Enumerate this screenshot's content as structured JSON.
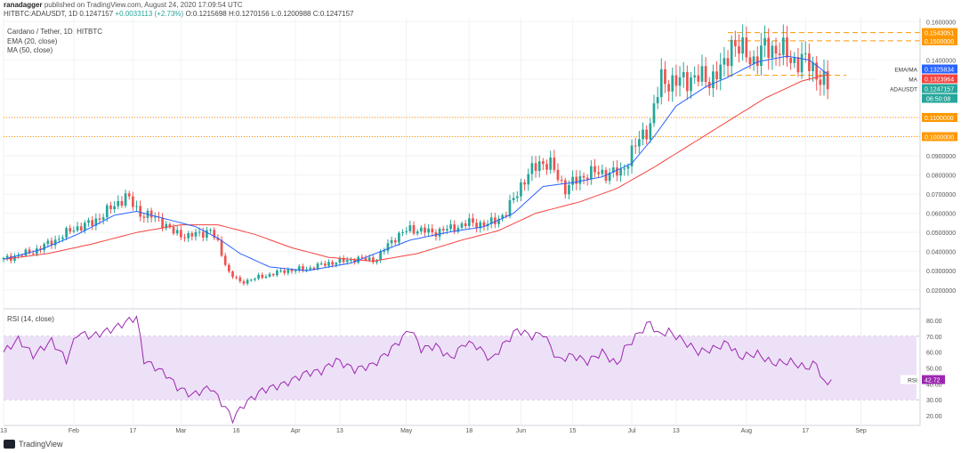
{
  "header": {
    "publisher": "ranadagger",
    "published_text": "published on TradingView.com, August 24, 2020 17:09:54 UTC",
    "quote_line": "HITBTC:ADAUSDT, 1D 0.1247157",
    "quote_change": "+0.0033113 (+2.73%)",
    "quote_ohlc": "O:0.1215698 H:0.1270156 L:0.1200988 C:0.1247157"
  },
  "legend": {
    "title": "Cardano / Tether, 1D, HITBTC",
    "ema": "EMA (20, close)",
    "ma": "MA (50, close)",
    "rsi": "RSI (14, close)"
  },
  "footer": {
    "brand": "TradingView"
  },
  "colors": {
    "up": "#26a69a",
    "down": "#ef5350",
    "ema": "#2962ff",
    "ma": "#f4433e",
    "rsi": "#9c27b0",
    "level": "#ff9800",
    "rsi_band": "#ede1f7"
  },
  "chart_data": {
    "type": "candlestick",
    "title": "Cardano / Tether, 1D, HITBTC",
    "y_ticks": [
      "0.1600000",
      "0.1400000",
      "0.1300000",
      "0.1100000",
      "0.1000000",
      "0.0900000",
      "0.0800000",
      "0.0700000",
      "0.0600000",
      "0.0500000",
      "0.0400000",
      "0.0300000",
      "0.0200000"
    ],
    "ylim": [
      0.012,
      0.162
    ],
    "x_ticks": [
      {
        "label": "13",
        "day": 0
      },
      {
        "label": "Feb",
        "day": 19
      },
      {
        "label": "17",
        "day": 35
      },
      {
        "label": "Mar",
        "day": 48
      },
      {
        "label": "16",
        "day": 63
      },
      {
        "label": "Apr",
        "day": 79
      },
      {
        "label": "13",
        "day": 91
      },
      {
        "label": "May",
        "day": 109
      },
      {
        "label": "18",
        "day": 126
      },
      {
        "label": "Jun",
        "day": 140
      },
      {
        "label": "15",
        "day": 154
      },
      {
        "label": "Jul",
        "day": 170
      },
      {
        "label": "13",
        "day": 182
      },
      {
        "label": "Aug",
        "day": 201
      },
      {
        "label": "17",
        "day": 217
      },
      {
        "label": "Sep",
        "day": 232
      }
    ],
    "x_range_days": [
      0,
      248
    ],
    "horizontal_levels": [
      {
        "value": 0.1543051,
        "label": "0.1543051",
        "style": "dashed"
      },
      {
        "value": 0.15,
        "label": "0.1500000",
        "style": "dashed"
      },
      {
        "value": 0.11,
        "label": "0.1100000",
        "style": "dotted"
      },
      {
        "value": 0.1,
        "label": "0.1000000",
        "style": "dotted"
      }
    ],
    "support_line": {
      "value": 0.132,
      "from_day": 196,
      "to_day": 228
    },
    "price_labels": [
      {
        "name": "EMA/MA",
        "value": 0.1325834,
        "text": "0.1325834",
        "color": "#2962ff"
      },
      {
        "name": "MA",
        "value": 0.1323964,
        "text": "0.1323964",
        "color": "#f4433e"
      },
      {
        "name": "ADAUSDT",
        "value": 0.1247157,
        "text": "0.1247157",
        "color": "#26a69a"
      }
    ],
    "countdown": "06:50:08",
    "series_keypoints": [
      [
        0,
        0.036
      ],
      [
        8,
        0.04
      ],
      [
        14,
        0.046
      ],
      [
        19,
        0.052
      ],
      [
        24,
        0.055
      ],
      [
        30,
        0.064
      ],
      [
        33,
        0.069
      ],
      [
        37,
        0.06
      ],
      [
        42,
        0.057
      ],
      [
        46,
        0.05
      ],
      [
        50,
        0.048
      ],
      [
        56,
        0.051
      ],
      [
        58,
        0.044
      ],
      [
        61,
        0.029
      ],
      [
        64,
        0.024
      ],
      [
        70,
        0.027
      ],
      [
        76,
        0.03
      ],
      [
        82,
        0.031
      ],
      [
        88,
        0.034
      ],
      [
        95,
        0.036
      ],
      [
        101,
        0.036
      ],
      [
        105,
        0.046
      ],
      [
        110,
        0.052
      ],
      [
        116,
        0.05
      ],
      [
        121,
        0.052
      ],
      [
        126,
        0.055
      ],
      [
        131,
        0.054
      ],
      [
        136,
        0.06
      ],
      [
        140,
        0.075
      ],
      [
        145,
        0.087
      ],
      [
        148,
        0.085
      ],
      [
        152,
        0.073
      ],
      [
        158,
        0.081
      ],
      [
        163,
        0.081
      ],
      [
        167,
        0.081
      ],
      [
        170,
        0.092
      ],
      [
        175,
        0.107
      ],
      [
        178,
        0.13
      ],
      [
        182,
        0.128
      ],
      [
        186,
        0.131
      ],
      [
        191,
        0.13
      ],
      [
        195,
        0.136
      ],
      [
        197,
        0.15
      ],
      [
        200,
        0.144
      ],
      [
        203,
        0.14
      ],
      [
        206,
        0.146
      ],
      [
        210,
        0.146
      ],
      [
        213,
        0.14
      ],
      [
        216,
        0.14
      ],
      [
        219,
        0.136
      ],
      [
        222,
        0.128
      ],
      [
        223,
        0.1247
      ]
    ],
    "ema_keypoints": [
      [
        0,
        0.036
      ],
      [
        10,
        0.041
      ],
      [
        20,
        0.049
      ],
      [
        30,
        0.059
      ],
      [
        36,
        0.061
      ],
      [
        44,
        0.057
      ],
      [
        52,
        0.053
      ],
      [
        58,
        0.047
      ],
      [
        64,
        0.039
      ],
      [
        72,
        0.032
      ],
      [
        82,
        0.03
      ],
      [
        94,
        0.034
      ],
      [
        102,
        0.04
      ],
      [
        110,
        0.046
      ],
      [
        120,
        0.05
      ],
      [
        130,
        0.053
      ],
      [
        138,
        0.06
      ],
      [
        146,
        0.074
      ],
      [
        154,
        0.076
      ],
      [
        162,
        0.079
      ],
      [
        170,
        0.086
      ],
      [
        176,
        0.1
      ],
      [
        182,
        0.116
      ],
      [
        190,
        0.126
      ],
      [
        196,
        0.131
      ],
      [
        204,
        0.139
      ],
      [
        212,
        0.142
      ],
      [
        218,
        0.14
      ],
      [
        223,
        0.1326
      ]
    ],
    "ma_keypoints": [
      [
        0,
        0.036
      ],
      [
        12,
        0.039
      ],
      [
        24,
        0.044
      ],
      [
        36,
        0.05
      ],
      [
        48,
        0.054
      ],
      [
        58,
        0.054
      ],
      [
        68,
        0.049
      ],
      [
        78,
        0.042
      ],
      [
        88,
        0.037
      ],
      [
        100,
        0.035
      ],
      [
        112,
        0.039
      ],
      [
        124,
        0.046
      ],
      [
        134,
        0.051
      ],
      [
        144,
        0.06
      ],
      [
        156,
        0.066
      ],
      [
        166,
        0.073
      ],
      [
        176,
        0.084
      ],
      [
        186,
        0.096
      ],
      [
        196,
        0.108
      ],
      [
        206,
        0.12
      ],
      [
        216,
        0.129
      ],
      [
        223,
        0.1324
      ]
    ],
    "rsi": {
      "title": "RSI (14, close)",
      "value_text": "42.72",
      "band": [
        30,
        70
      ],
      "ylim": [
        15,
        85
      ],
      "y_ticks": [
        "80.00",
        "70.00",
        "60.00",
        "50.00",
        "40.00",
        "30.00",
        "20.00"
      ],
      "keypoints": [
        [
          0,
          60
        ],
        [
          4,
          68
        ],
        [
          8,
          58
        ],
        [
          13,
          67
        ],
        [
          17,
          55
        ],
        [
          20,
          72
        ],
        [
          24,
          70
        ],
        [
          30,
          75
        ],
        [
          34,
          80
        ],
        [
          36,
          82
        ],
        [
          38,
          55
        ],
        [
          44,
          46
        ],
        [
          47,
          38
        ],
        [
          51,
          33
        ],
        [
          56,
          38
        ],
        [
          60,
          25
        ],
        [
          62,
          18
        ],
        [
          65,
          27
        ],
        [
          70,
          36
        ],
        [
          76,
          40
        ],
        [
          82,
          47
        ],
        [
          86,
          48
        ],
        [
          90,
          55
        ],
        [
          95,
          49
        ],
        [
          100,
          52
        ],
        [
          104,
          60
        ],
        [
          108,
          69
        ],
        [
          110,
          75
        ],
        [
          113,
          62
        ],
        [
          117,
          64
        ],
        [
          121,
          56
        ],
        [
          125,
          66
        ],
        [
          128,
          64
        ],
        [
          132,
          55
        ],
        [
          135,
          64
        ],
        [
          139,
          74
        ],
        [
          143,
          70
        ],
        [
          146,
          72
        ],
        [
          150,
          55
        ],
        [
          154,
          58
        ],
        [
          158,
          54
        ],
        [
          162,
          60
        ],
        [
          166,
          52
        ],
        [
          168,
          62
        ],
        [
          172,
          72
        ],
        [
          175,
          79
        ],
        [
          177,
          71
        ],
        [
          180,
          73
        ],
        [
          184,
          67
        ],
        [
          188,
          60
        ],
        [
          192,
          62
        ],
        [
          196,
          66
        ],
        [
          199,
          57
        ],
        [
          204,
          59
        ],
        [
          208,
          53
        ],
        [
          213,
          54
        ],
        [
          217,
          50
        ],
        [
          220,
          53
        ],
        [
          222,
          40
        ],
        [
          224,
          40
        ]
      ]
    }
  }
}
